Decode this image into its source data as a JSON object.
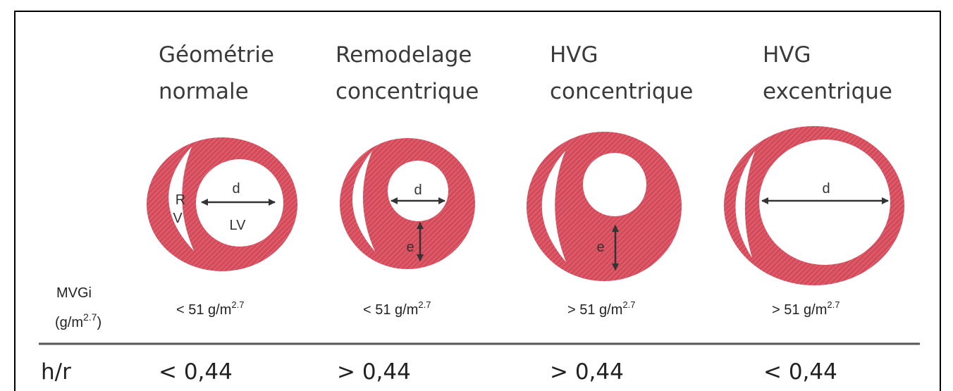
{
  "columns": [
    {
      "title": [
        "Géométrie",
        "normale"
      ],
      "mvgi": {
        "text": "< 51 g/m",
        "sup": "2.7"
      },
      "hr": "< 0,44"
    },
    {
      "title": [
        "Remodelage",
        "concentrique"
      ],
      "mvgi": {
        "text": "< 51 g/m",
        "sup": "2.7"
      },
      "hr": "> 0,44"
    },
    {
      "title": [
        "HVG",
        "concentrique"
      ],
      "mvgi": {
        "text": "> 51 g/m",
        "sup": "2.7"
      },
      "hr": "> 0,44"
    },
    {
      "title": [
        "HVG",
        "excentrique"
      ],
      "mvgi": {
        "text": "> 51 g/m",
        "sup": "2.7"
      },
      "hr": "< 0,44"
    }
  ],
  "row_labels": {
    "mvgi": {
      "line1": "MVGi",
      "line2": "(g/m",
      "sup": "2.7",
      "close": ")"
    },
    "hr": "h/r"
  },
  "diagram_labels": {
    "r": "R",
    "v": "V",
    "lv": "LV",
    "d": "d",
    "e": "e"
  }
}
